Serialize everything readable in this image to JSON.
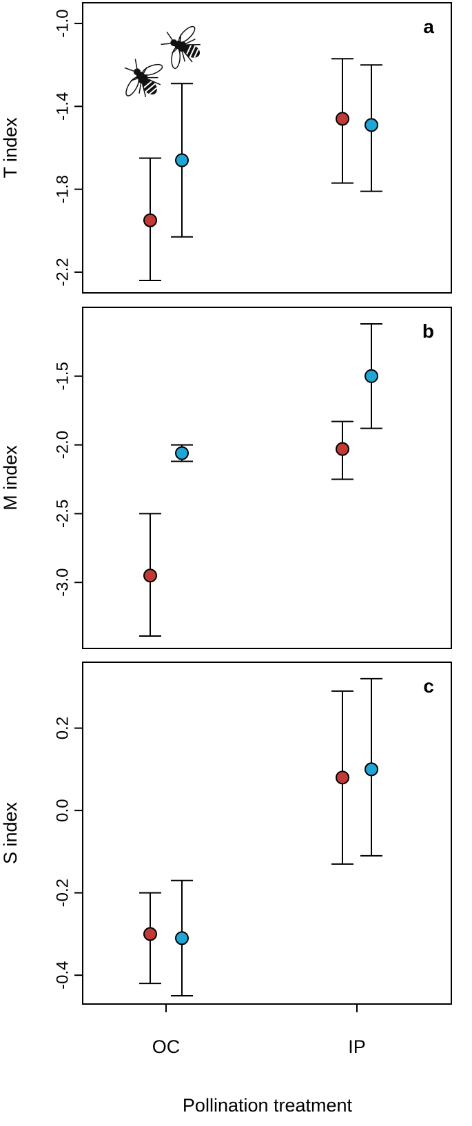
{
  "chart_data": {
    "type": "scatter",
    "categories": [
      "OC",
      "IP"
    ],
    "xlabel": "Pollination treatment",
    "colors": {
      "red": "#c23a36",
      "blue": "#1ea7d6"
    },
    "icons": [
      "bee-icon",
      "bee-icon"
    ],
    "panels": [
      {
        "letter": "a",
        "ylabel": "T index",
        "ylim": [
          -2.3,
          -0.9
        ],
        "yticks": [
          -1.0,
          -1.4,
          -1.8,
          -2.2
        ],
        "ytick_labels": [
          "-1.0",
          "-1.4",
          "-1.8",
          "-2.2"
        ],
        "series": [
          {
            "color": "#c23a36",
            "values": [
              -1.95,
              -1.46
            ],
            "lower": [
              -2.24,
              -1.77
            ],
            "upper": [
              -1.65,
              -1.17
            ]
          },
          {
            "color": "#1ea7d6",
            "values": [
              -1.66,
              -1.49
            ],
            "lower": [
              -2.03,
              -1.81
            ],
            "upper": [
              -1.29,
              -1.2
            ]
          }
        ]
      },
      {
        "letter": "b",
        "ylabel": "M index",
        "ylim": [
          -3.48,
          -1.0
        ],
        "yticks": [
          -1.5,
          -2.0,
          -2.5,
          -3.0
        ],
        "ytick_labels": [
          "-1.5",
          "-2.0",
          "-2.5",
          "-3.0"
        ],
        "series": [
          {
            "color": "#c23a36",
            "values": [
              -2.95,
              -2.03
            ],
            "lower": [
              -3.39,
              -2.25
            ],
            "upper": [
              -2.5,
              -1.83
            ]
          },
          {
            "color": "#1ea7d6",
            "values": [
              -2.06,
              -1.5
            ],
            "lower": [
              -2.12,
              -1.88
            ],
            "upper": [
              -2.0,
              -1.12
            ]
          }
        ]
      },
      {
        "letter": "c",
        "ylabel": "S index",
        "ylim": [
          -0.47,
          0.36
        ],
        "yticks": [
          0.2,
          0.0,
          -0.2,
          -0.4
        ],
        "ytick_labels": [
          "0.2",
          "0.0",
          "-0.2",
          "-0.4"
        ],
        "series": [
          {
            "color": "#c23a36",
            "values": [
              -0.3,
              0.08
            ],
            "lower": [
              -0.42,
              -0.13
            ],
            "upper": [
              -0.2,
              0.29
            ]
          },
          {
            "color": "#1ea7d6",
            "values": [
              -0.31,
              0.1
            ],
            "lower": [
              -0.45,
              -0.11
            ],
            "upper": [
              -0.17,
              0.32
            ]
          }
        ]
      }
    ]
  }
}
